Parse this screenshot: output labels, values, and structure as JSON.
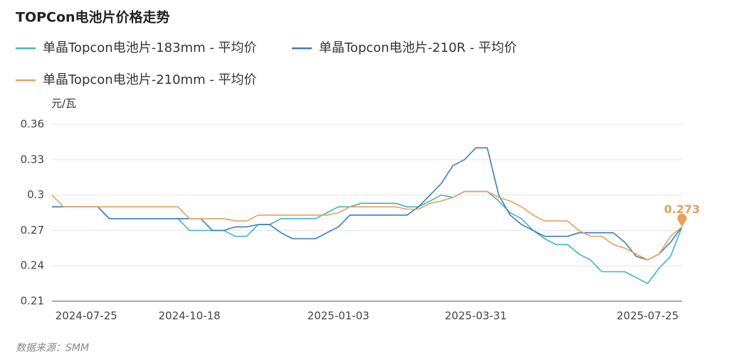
{
  "chart_data": {
    "type": "line",
    "title": "TOPCon电池片价格走势",
    "y_label": "元/瓦",
    "source": "数据来源：SMM",
    "categories": [
      null,
      null,
      null,
      "2024-07-25",
      null,
      null,
      null,
      null,
      null,
      null,
      null,
      null,
      "2024-10-18",
      null,
      null,
      null,
      null,
      null,
      null,
      null,
      null,
      null,
      null,
      null,
      null,
      "2025-01-03",
      null,
      null,
      null,
      null,
      null,
      null,
      null,
      null,
      null,
      null,
      null,
      "2025-03-31",
      null,
      null,
      null,
      null,
      null,
      null,
      null,
      null,
      null,
      null,
      null,
      null,
      null,
      null,
      "2025-07-25",
      null,
      null,
      null
    ],
    "series": [
      {
        "name": "单晶Topcon电池片-183mm - 平均价",
        "color": "#3fb5c9",
        "values": [
          0.29,
          0.29,
          0.29,
          0.29,
          0.29,
          0.28,
          0.28,
          0.28,
          0.28,
          0.28,
          0.28,
          0.28,
          0.27,
          0.27,
          0.27,
          0.27,
          0.265,
          0.265,
          0.275,
          0.275,
          0.28,
          0.28,
          0.28,
          0.28,
          0.285,
          0.29,
          0.29,
          0.293,
          0.293,
          0.293,
          0.293,
          0.29,
          0.29,
          0.295,
          0.3,
          0.298,
          0.303,
          0.303,
          0.303,
          0.295,
          0.285,
          0.28,
          0.27,
          0.263,
          0.258,
          0.258,
          0.25,
          0.245,
          0.235,
          0.235,
          0.235,
          0.23,
          0.225,
          0.238,
          0.248,
          0.273
        ]
      },
      {
        "name": "单晶Topcon电池片-210R - 平均价",
        "color": "#3d7ebf",
        "values": [
          0.29,
          0.29,
          0.29,
          0.29,
          0.29,
          0.28,
          0.28,
          0.28,
          0.28,
          0.28,
          0.28,
          0.28,
          0.28,
          0.28,
          0.27,
          0.27,
          0.273,
          0.273,
          0.275,
          0.275,
          0.268,
          0.263,
          0.263,
          0.263,
          0.268,
          0.273,
          0.283,
          0.283,
          0.283,
          0.283,
          0.283,
          0.283,
          0.29,
          0.3,
          0.31,
          0.325,
          0.33,
          0.34,
          0.34,
          0.3,
          0.283,
          0.275,
          0.27,
          0.265,
          0.265,
          0.265,
          0.268,
          0.268,
          0.268,
          0.268,
          0.26,
          0.248,
          0.245,
          0.25,
          0.26,
          0.273
        ]
      },
      {
        "name": "单晶Topcon电池片-210mm - 平均价",
        "color": "#e8a05a",
        "values": [
          0.3,
          0.29,
          0.29,
          0.29,
          0.29,
          0.29,
          0.29,
          0.29,
          0.29,
          0.29,
          0.29,
          0.29,
          0.28,
          0.28,
          0.28,
          0.28,
          0.278,
          0.278,
          0.283,
          0.283,
          0.283,
          0.283,
          0.283,
          0.283,
          0.283,
          0.285,
          0.29,
          0.29,
          0.29,
          0.29,
          0.29,
          0.288,
          0.288,
          0.293,
          0.295,
          0.298,
          0.303,
          0.303,
          0.303,
          0.298,
          0.295,
          0.29,
          0.283,
          0.278,
          0.278,
          0.278,
          0.27,
          0.265,
          0.265,
          0.258,
          0.255,
          0.25,
          0.245,
          0.25,
          0.265,
          0.273
        ]
      }
    ],
    "ylim": [
      0.21,
      0.36
    ],
    "yticks": [
      0.21,
      0.24,
      0.27,
      0.3,
      0.33,
      0.36
    ],
    "grid": true
  }
}
